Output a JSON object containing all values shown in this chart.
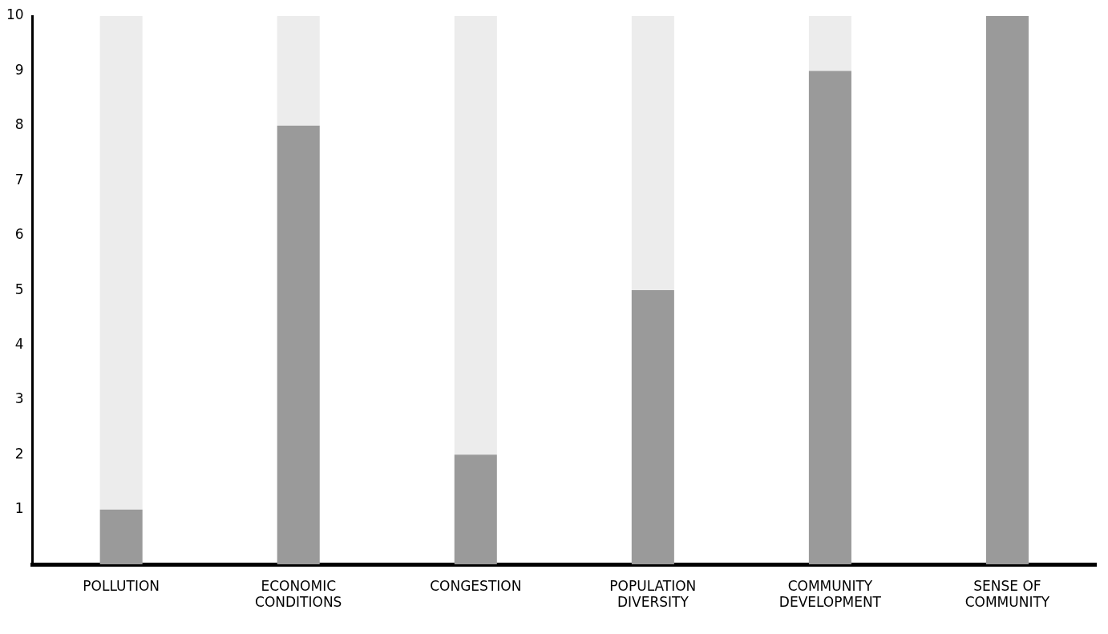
{
  "chart_data": {
    "type": "bar",
    "stacked": true,
    "categories": [
      "POLLUTION",
      "ECONOMIC\nCONDITIONS",
      "CONGESTION",
      "POPULATION\nDIVERSITY",
      "COMMUNITY\nDEVELOPMENT",
      "SENSE OF\nCOMMUNITY"
    ],
    "series": [
      {
        "color": "#9a9a9a",
        "values": [
          1,
          8,
          2,
          5,
          9,
          10
        ]
      },
      {
        "color": "#ececec",
        "values": [
          9,
          2,
          8,
          5,
          1,
          0
        ]
      }
    ],
    "ylim": [
      0,
      10
    ],
    "yticks": [
      1,
      2,
      3,
      4,
      5,
      6,
      7,
      8,
      9,
      10
    ],
    "grid": false,
    "legend": false
  }
}
